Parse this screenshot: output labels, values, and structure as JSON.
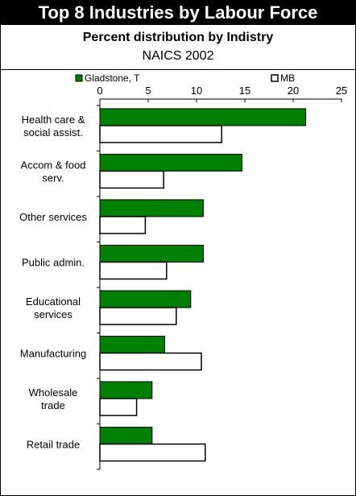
{
  "header": {
    "title": "Top 8 Industries by Labour Force",
    "subtitle": "Percent distribution by Indistry",
    "subtitle2": "NAICS 2002"
  },
  "colors": {
    "series_1": "#008000",
    "series_2": "#ffffff",
    "outline": "#000000"
  },
  "chart_data": {
    "type": "bar",
    "orientation": "horizontal",
    "categories": [
      [
        "Health care &",
        "social assist."
      ],
      [
        "Accom & food",
        "serv."
      ],
      [
        "Other services"
      ],
      [
        "Public admin."
      ],
      [
        "Educational",
        "services"
      ],
      [
        "Manufacturing"
      ],
      [
        "Wholesale",
        "trade"
      ],
      [
        "Retail trade"
      ]
    ],
    "series": [
      {
        "name": "Gladstone, T",
        "values": [
          21.3,
          14.7,
          10.7,
          10.7,
          9.4,
          6.7,
          5.4,
          5.4
        ]
      },
      {
        "name": "MB",
        "values": [
          12.6,
          6.6,
          4.7,
          6.9,
          7.9,
          10.5,
          3.8,
          10.9
        ]
      }
    ],
    "xlim": [
      0,
      25
    ],
    "xticks": [
      "0",
      "5",
      "10",
      "15",
      "20",
      "25"
    ],
    "legend_position": "top",
    "grid": false
  }
}
